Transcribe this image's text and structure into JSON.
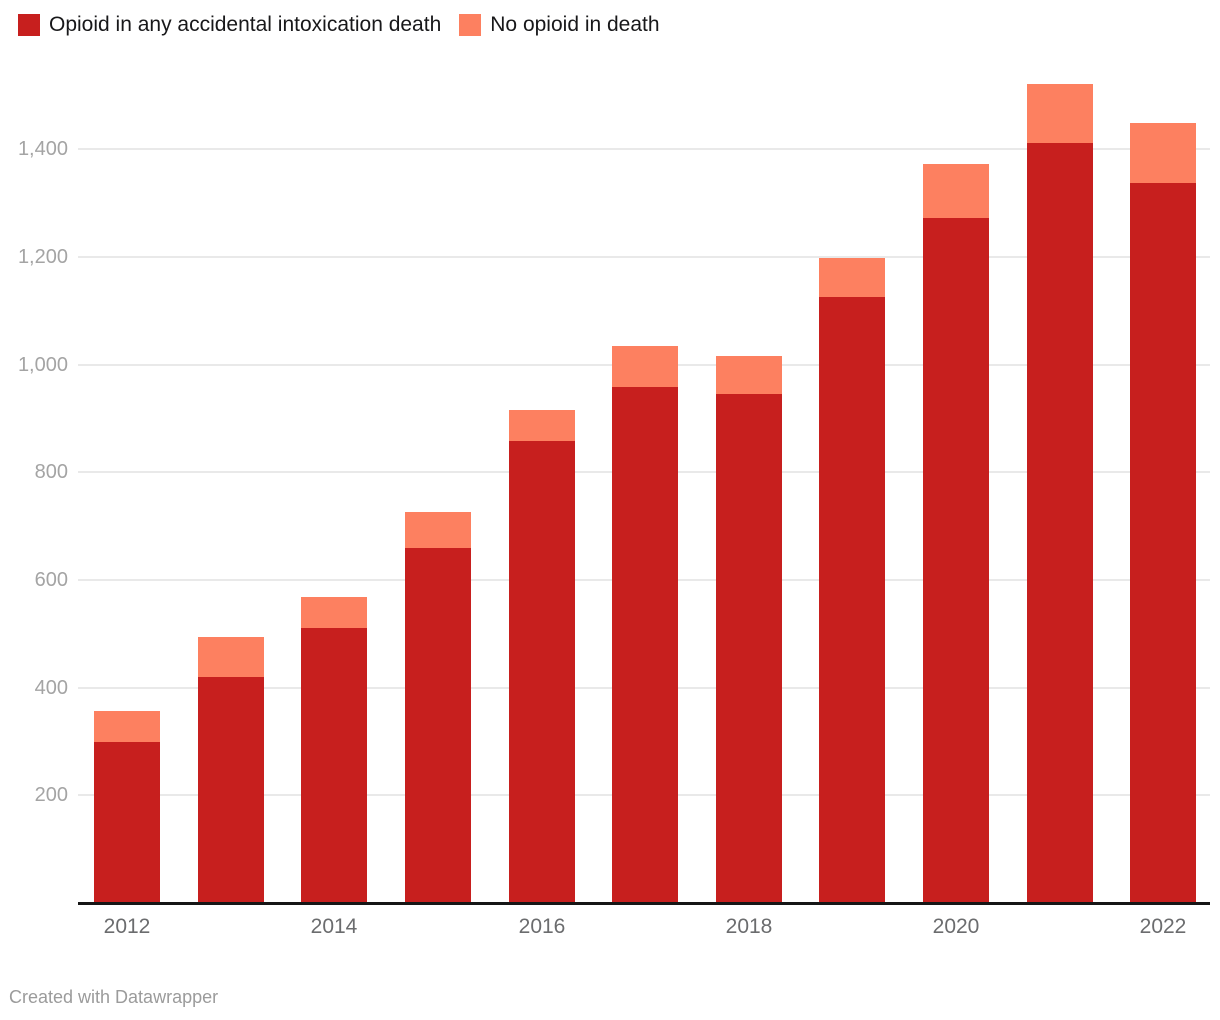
{
  "legend": {
    "items": [
      {
        "label": "Opioid in any accidental intoxication death",
        "color": "#c71f1e"
      },
      {
        "label": "No opioid in death",
        "color": "#fd8060"
      }
    ]
  },
  "chart_data": {
    "type": "bar",
    "stacked": true,
    "title": "",
    "xlabel": "",
    "ylabel": "",
    "legend_position": "top-left",
    "categories": [
      2012,
      2013,
      2014,
      2015,
      2016,
      2017,
      2018,
      2019,
      2020,
      2021,
      2022
    ],
    "series": [
      {
        "name": "Opioid in any accidental intoxication death",
        "color": "#c71f1e",
        "values": [
          299,
          419,
          511,
          660,
          858,
          959,
          946,
          1126,
          1272,
          1411,
          1338
        ]
      },
      {
        "name": "No opioid in death",
        "color": "#fd8060",
        "values": [
          58,
          74,
          57,
          67,
          57,
          77,
          70,
          73,
          100,
          110,
          111
        ]
      }
    ],
    "stack_totals": [
      357,
      493,
      568,
      727,
      915,
      1036,
      1016,
      1199,
      1372,
      1521,
      1449
    ],
    "y_axis": {
      "range": [
        0,
        1553
      ],
      "grid": true,
      "ticks": [
        200,
        400,
        600,
        800,
        1000,
        1200,
        1400
      ],
      "tick_labels": [
        "200",
        "400",
        "600",
        "800",
        "1,000",
        "1,200",
        "1,400"
      ]
    },
    "x_axis": {
      "tick_labels": [
        "2012",
        "2014",
        "2016",
        "2018",
        "2020",
        "2022"
      ],
      "labeled_category_indexes": [
        0,
        2,
        4,
        6,
        8,
        10
      ]
    }
  },
  "footer": {
    "credit": "Created with Datawrapper"
  },
  "colors": {
    "series1": "#c71f1e",
    "series2": "#fd8060",
    "background": "#ffffff",
    "gridline": "#e9e9e9",
    "axis_line": "#161616",
    "y_tick_text": "#a4a4a4",
    "x_tick_text": "#6b6c6e",
    "legend_text": "#18181a",
    "footer_text": "#9b9b9b"
  }
}
